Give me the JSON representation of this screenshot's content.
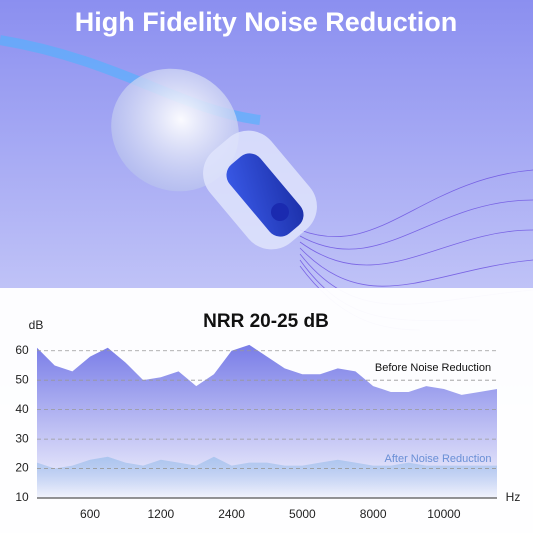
{
  "chart_data": {
    "type": "area",
    "header": "High Fidelity Noise Reduction",
    "title": "NRR 20-25 dB",
    "y_label": "dB",
    "x_label": "Hz",
    "categories": [
      null,
      null,
      null,
      "600",
      null,
      null,
      null,
      "1200",
      null,
      null,
      null,
      "2400",
      null,
      null,
      null,
      "5000",
      null,
      null,
      null,
      "8000",
      null,
      null,
      null,
      "10000",
      null,
      null,
      null
    ],
    "series": [
      {
        "name": "Before Noise Reduction",
        "color": "#7276e6",
        "values": [
          61,
          55,
          53,
          58,
          61,
          56,
          50,
          51,
          53,
          48,
          52,
          60,
          62,
          58,
          54,
          52,
          52,
          54,
          53,
          48,
          46,
          46,
          48,
          47,
          45,
          46,
          47
        ]
      },
      {
        "name": "After Noise Reduction",
        "color": "#a9c4ee",
        "values": [
          22,
          20,
          21,
          23,
          24,
          22,
          21,
          23,
          22,
          21,
          24,
          21,
          22,
          22,
          21,
          21,
          22,
          23,
          22,
          21,
          21,
          22,
          21,
          21,
          21,
          21,
          21
        ]
      }
    ],
    "ylim": [
      10,
      65
    ],
    "yticks": [
      10,
      20,
      30,
      40,
      50,
      60
    ],
    "grid": true
  }
}
